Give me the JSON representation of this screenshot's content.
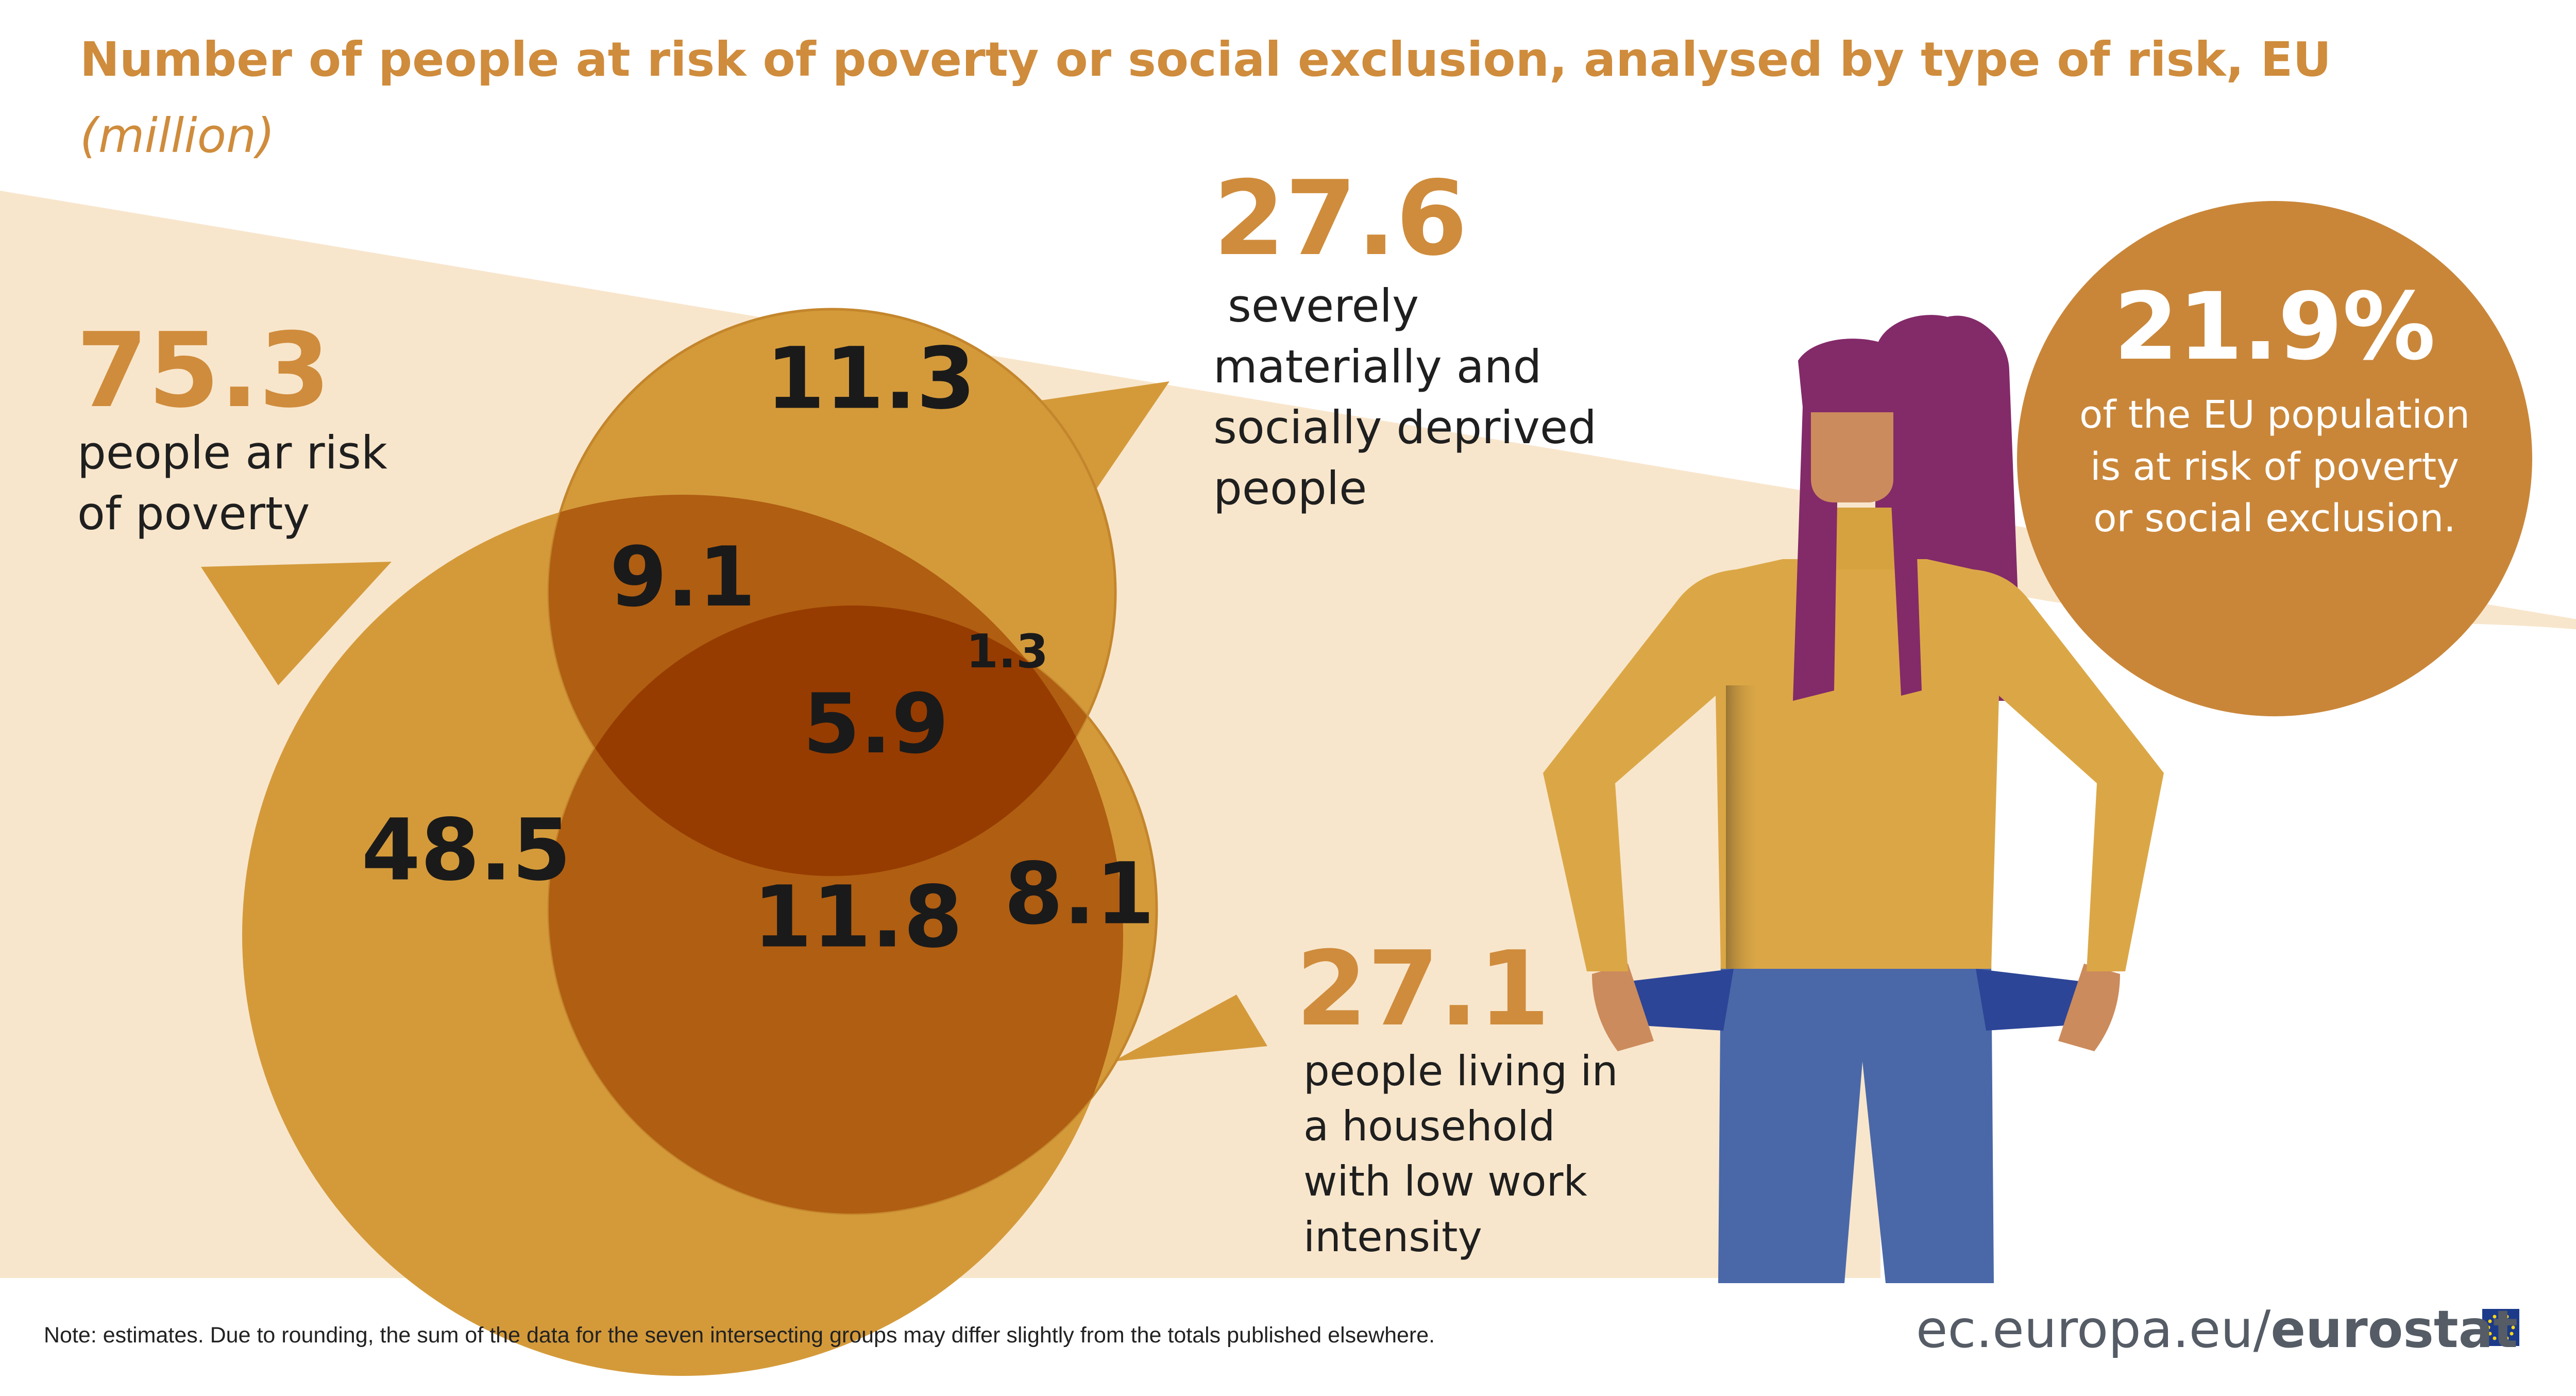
{
  "title": "Number of people at risk of poverty or social exclusion, analysed by type of risk, EU",
  "subtitle": "(million)",
  "sets": {
    "poverty": {
      "total": "75.3",
      "label": "people ar risk of poverty"
    },
    "deprived": {
      "total": "27.6",
      "label": " severely materially and socially deprived people"
    },
    "low_work": {
      "total": "27.1",
      "label": "people living in a household with low work intensity"
    }
  },
  "regions": {
    "deprived_only": "11.3",
    "poverty_deprived": "9.1",
    "deprived_low_work": "1.3",
    "all_three": "5.9",
    "poverty_only": "48.5",
    "poverty_low_work": "11.8",
    "low_work_only": "8.1"
  },
  "headline": {
    "value": "21.9%",
    "text": "of the EU population is at risk of poverty or social exclusion."
  },
  "note": "Note: estimates. Due to rounding, the sum of the data for the seven intersecting groups may differ slightly from the totals published elsewhere.",
  "brand": {
    "prefix": "ec.europa.eu/",
    "name": "eurostat"
  },
  "colors": {
    "accent": "#cf8c3c",
    "background_band": "#f8e6cc",
    "circle": "#d49a3a",
    "overlap_two": "#b05e12",
    "overlap_three": "#963c00",
    "headline_circle": "#c98639",
    "figure_hair": "#832a69",
    "figure_skin": "#cc8b5c",
    "figure_shirt": "#dba746",
    "figure_jeans": "#4a68a8",
    "pocket": "#2c4597"
  },
  "icons": [
    "woman-empty-pockets-illustration",
    "eu-flag-icon"
  ]
}
